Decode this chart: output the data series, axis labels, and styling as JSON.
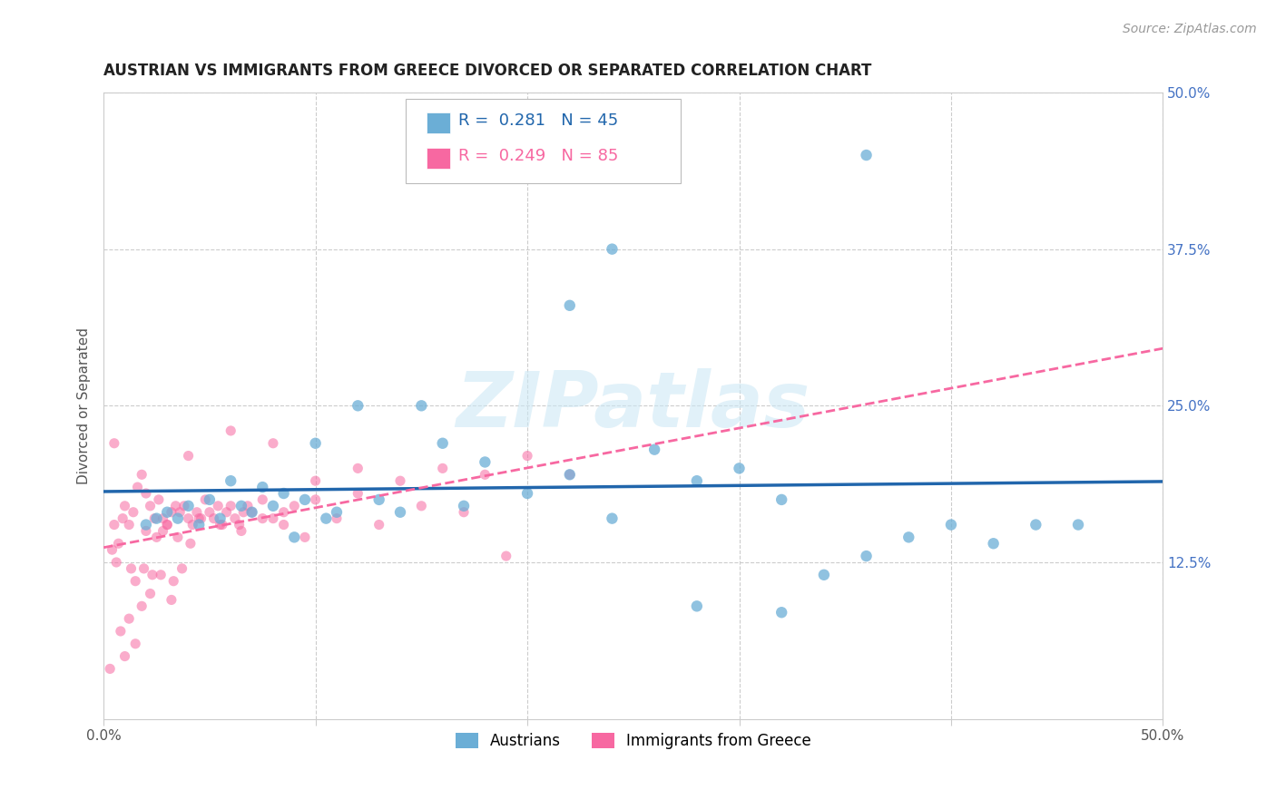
{
  "title": "AUSTRIAN VS IMMIGRANTS FROM GREECE DIVORCED OR SEPARATED CORRELATION CHART",
  "source": "Source: ZipAtlas.com",
  "ylabel": "Divorced or Separated",
  "xlim": [
    0.0,
    0.5
  ],
  "ylim": [
    0.0,
    0.5
  ],
  "yticks": [
    0.125,
    0.25,
    0.375,
    0.5
  ],
  "yticklabels": [
    "12.5%",
    "25.0%",
    "37.5%",
    "50.0%"
  ],
  "legend_blue_r": "0.281",
  "legend_blue_n": "45",
  "legend_pink_r": "0.249",
  "legend_pink_n": "85",
  "legend_blue_label": "Austrians",
  "legend_pink_label": "Immigrants from Greece",
  "blue_color": "#6baed6",
  "pink_color": "#f768a1",
  "blue_line_color": "#2166ac",
  "pink_line_color": "#f768a1",
  "watermark": "ZIPatlas",
  "blue_points_x": [
    0.02,
    0.025,
    0.03,
    0.035,
    0.04,
    0.045,
    0.05,
    0.055,
    0.06,
    0.065,
    0.07,
    0.075,
    0.08,
    0.085,
    0.09,
    0.095,
    0.1,
    0.105,
    0.11,
    0.12,
    0.13,
    0.14,
    0.15,
    0.16,
    0.17,
    0.18,
    0.2,
    0.22,
    0.24,
    0.26,
    0.28,
    0.3,
    0.32,
    0.34,
    0.36,
    0.38,
    0.4,
    0.42,
    0.44,
    0.46,
    0.36,
    0.22,
    0.24,
    0.28,
    0.32
  ],
  "blue_points_y": [
    0.155,
    0.16,
    0.165,
    0.16,
    0.17,
    0.155,
    0.175,
    0.16,
    0.19,
    0.17,
    0.165,
    0.185,
    0.17,
    0.18,
    0.145,
    0.175,
    0.22,
    0.16,
    0.165,
    0.25,
    0.175,
    0.165,
    0.25,
    0.22,
    0.17,
    0.205,
    0.18,
    0.195,
    0.16,
    0.215,
    0.19,
    0.2,
    0.175,
    0.115,
    0.13,
    0.145,
    0.155,
    0.14,
    0.155,
    0.155,
    0.45,
    0.33,
    0.375,
    0.09,
    0.085
  ],
  "pink_points_x": [
    0.005,
    0.007,
    0.009,
    0.01,
    0.012,
    0.014,
    0.016,
    0.018,
    0.02,
    0.022,
    0.024,
    0.026,
    0.028,
    0.03,
    0.032,
    0.034,
    0.036,
    0.038,
    0.04,
    0.042,
    0.044,
    0.046,
    0.048,
    0.05,
    0.052,
    0.054,
    0.056,
    0.058,
    0.06,
    0.062,
    0.064,
    0.066,
    0.068,
    0.07,
    0.075,
    0.08,
    0.085,
    0.09,
    0.1,
    0.12,
    0.14,
    0.16,
    0.18,
    0.2,
    0.22,
    0.06,
    0.04,
    0.08,
    0.1,
    0.12,
    0.02,
    0.025,
    0.03,
    0.015,
    0.008,
    0.01,
    0.012,
    0.015,
    0.018,
    0.022,
    0.032,
    0.028,
    0.035,
    0.045,
    0.055,
    0.065,
    0.075,
    0.085,
    0.095,
    0.11,
    0.13,
    0.15,
    0.17,
    0.19,
    0.004,
    0.006,
    0.013,
    0.019,
    0.023,
    0.027,
    0.033,
    0.037,
    0.041,
    0.003,
    0.005
  ],
  "pink_points_y": [
    0.155,
    0.14,
    0.16,
    0.17,
    0.155,
    0.165,
    0.185,
    0.195,
    0.18,
    0.17,
    0.16,
    0.175,
    0.16,
    0.155,
    0.165,
    0.17,
    0.165,
    0.17,
    0.16,
    0.155,
    0.165,
    0.16,
    0.175,
    0.165,
    0.16,
    0.17,
    0.155,
    0.165,
    0.17,
    0.16,
    0.155,
    0.165,
    0.17,
    0.165,
    0.175,
    0.16,
    0.165,
    0.17,
    0.175,
    0.18,
    0.19,
    0.2,
    0.195,
    0.21,
    0.195,
    0.23,
    0.21,
    0.22,
    0.19,
    0.2,
    0.15,
    0.145,
    0.155,
    0.11,
    0.07,
    0.05,
    0.08,
    0.06,
    0.09,
    0.1,
    0.095,
    0.15,
    0.145,
    0.16,
    0.155,
    0.15,
    0.16,
    0.155,
    0.145,
    0.16,
    0.155,
    0.17,
    0.165,
    0.13,
    0.135,
    0.125,
    0.12,
    0.12,
    0.115,
    0.115,
    0.11,
    0.12,
    0.14,
    0.04,
    0.22
  ]
}
